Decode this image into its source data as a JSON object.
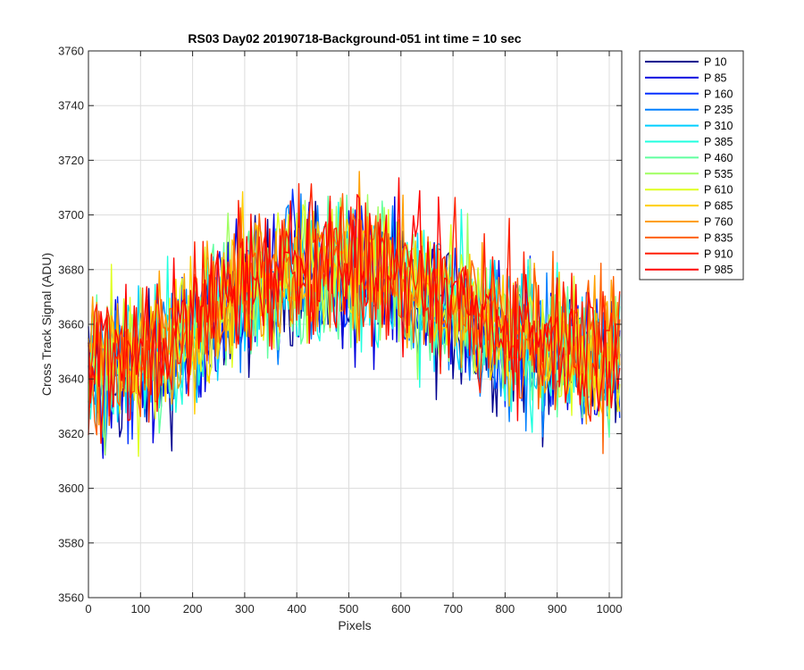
{
  "chart_data": {
    "type": "line",
    "title": "RS03 Day02 20190718-Background-051 int time = 10 sec",
    "xlabel": "Pixels",
    "ylabel": "Cross Track Signal (ADU)",
    "xlim": [
      0,
      1024
    ],
    "ylim": [
      3560,
      3760
    ],
    "xticks": [
      0,
      100,
      200,
      300,
      400,
      500,
      600,
      700,
      800,
      900,
      1000
    ],
    "yticks": [
      3560,
      3580,
      3600,
      3620,
      3640,
      3660,
      3680,
      3700,
      3720,
      3740,
      3760
    ],
    "grid": true,
    "legend_position": "outside-right",
    "x_points": [
      0,
      64,
      128,
      192,
      256,
      320,
      384,
      448,
      512,
      576,
      640,
      704,
      768,
      832,
      896,
      960,
      1023
    ],
    "series": [
      {
        "name": "P 10",
        "color": "#00008f",
        "values": [
          3640,
          3640,
          3644,
          3652,
          3662,
          3670,
          3675,
          3677,
          3676,
          3673,
          3668,
          3662,
          3656,
          3651,
          3648,
          3646,
          3646
        ]
      },
      {
        "name": "P 85",
        "color": "#0000df",
        "values": [
          3641,
          3641,
          3645,
          3653,
          3663,
          3671,
          3676,
          3678,
          3677,
          3674,
          3669,
          3663,
          3657,
          3652,
          3649,
          3647,
          3647
        ]
      },
      {
        "name": "P 160",
        "color": "#0030ff",
        "values": [
          3642,
          3642,
          3646,
          3654,
          3664,
          3672,
          3677,
          3679,
          3678,
          3675,
          3670,
          3664,
          3658,
          3653,
          3650,
          3648,
          3648
        ]
      },
      {
        "name": "P 235",
        "color": "#0080ff",
        "values": [
          3642,
          3643,
          3647,
          3655,
          3665,
          3673,
          3677,
          3679,
          3678,
          3675,
          3670,
          3664,
          3658,
          3654,
          3650,
          3648,
          3648
        ]
      },
      {
        "name": "P 310",
        "color": "#00cfff",
        "values": [
          3643,
          3643,
          3647,
          3655,
          3665,
          3673,
          3678,
          3680,
          3679,
          3676,
          3671,
          3665,
          3659,
          3654,
          3651,
          3649,
          3649
        ]
      },
      {
        "name": "P 385",
        "color": "#20ffdf",
        "values": [
          3643,
          3644,
          3648,
          3656,
          3666,
          3674,
          3678,
          3680,
          3679,
          3676,
          3671,
          3665,
          3659,
          3655,
          3651,
          3649,
          3649
        ]
      },
      {
        "name": "P 460",
        "color": "#60ff9f",
        "values": [
          3644,
          3644,
          3648,
          3656,
          3666,
          3674,
          3679,
          3681,
          3680,
          3677,
          3672,
          3666,
          3660,
          3655,
          3652,
          3650,
          3650
        ]
      },
      {
        "name": "P 535",
        "color": "#9fff60",
        "values": [
          3644,
          3645,
          3649,
          3657,
          3667,
          3675,
          3679,
          3681,
          3680,
          3677,
          3672,
          3666,
          3660,
          3656,
          3652,
          3650,
          3650
        ]
      },
      {
        "name": "P 610",
        "color": "#dfff20",
        "values": [
          3645,
          3645,
          3649,
          3657,
          3667,
          3675,
          3680,
          3682,
          3681,
          3678,
          3673,
          3667,
          3661,
          3656,
          3653,
          3651,
          3651
        ]
      },
      {
        "name": "P 685",
        "color": "#ffcf00",
        "values": [
          3645,
          3646,
          3650,
          3658,
          3668,
          3676,
          3680,
          3682,
          3681,
          3678,
          3673,
          3667,
          3661,
          3657,
          3653,
          3651,
          3651
        ]
      },
      {
        "name": "P 760",
        "color": "#ff9f00",
        "values": [
          3646,
          3646,
          3650,
          3658,
          3668,
          3676,
          3681,
          3683,
          3682,
          3679,
          3674,
          3668,
          3662,
          3657,
          3654,
          3652,
          3652
        ]
      },
      {
        "name": "P 835",
        "color": "#ff6000",
        "values": [
          3646,
          3647,
          3651,
          3659,
          3669,
          3677,
          3681,
          3683,
          3682,
          3679,
          3674,
          3668,
          3662,
          3658,
          3654,
          3652,
          3652
        ]
      },
      {
        "name": "P 910",
        "color": "#ff2000",
        "values": [
          3647,
          3647,
          3651,
          3659,
          3669,
          3677,
          3682,
          3684,
          3683,
          3680,
          3675,
          3669,
          3663,
          3658,
          3655,
          3653,
          3653
        ]
      },
      {
        "name": "P 985",
        "color": "#ff0000",
        "values": [
          3647,
          3648,
          3652,
          3660,
          3670,
          3678,
          3682,
          3684,
          3683,
          3680,
          3675,
          3669,
          3663,
          3659,
          3655,
          3653,
          3653
        ]
      }
    ]
  }
}
